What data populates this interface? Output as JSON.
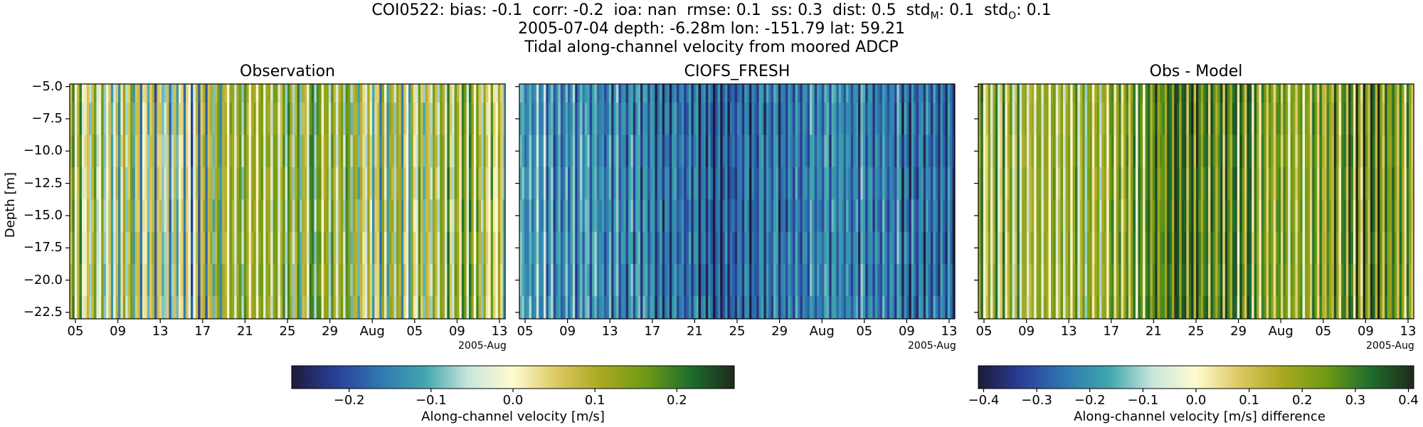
{
  "header": {
    "stats_line": "COI0522: bias: -0.1  corr: -0.2  ioa: nan  rmse: 0.1  ss: 0.3  dist: 0.5  std",
    "stats_sub_m": "M",
    "stats_mid": ": 0.1  std",
    "stats_sub_o": "O",
    "stats_end": ": 0.1",
    "meta_line": "2005-07-04 depth: -6.28m lon: -151.79 lat: 59.21",
    "subtitle": "Tidal along-channel velocity from moored ADCP"
  },
  "colors": {
    "colormap": [
      "#1b1b3a",
      "#2a3f9a",
      "#2f78b0",
      "#3fa6ad",
      "#c9e6dc",
      "#fffbd0",
      "#dcc860",
      "#a8a820",
      "#6e9a14",
      "#1e6e2e",
      "#1f2a1a"
    ]
  },
  "chart_data": [
    {
      "type": "heatmap",
      "title": "Observation",
      "ylabel": "Depth [m]",
      "xlabel": "",
      "yticks": [
        -5.0,
        -7.5,
        -10.0,
        -12.5,
        -15.0,
        -17.5,
        -20.0,
        -22.5
      ],
      "ylim": [
        -23,
        -4.8
      ],
      "xticks": [
        "05",
        "09",
        "13",
        "17",
        "21",
        "25",
        "29",
        "Aug",
        "05",
        "09",
        "13"
      ],
      "x_offset_label": "2005-Aug",
      "vrange": [
        -0.27,
        0.27
      ],
      "depth_bands": [
        -5.0,
        -7.5,
        -10.0,
        -12.5,
        -15.0,
        -17.5,
        -20.0,
        -22.5
      ],
      "time_range": [
        "2005-07-04",
        "2005-08-14"
      ],
      "trend": [
        0.05,
        0.0,
        -0.02,
        -0.05,
        0.05,
        0.1,
        0.08,
        0.06,
        0.0,
        0.05,
        0.1,
        0.05
      ],
      "amplitude": 0.12,
      "colorbar": "shared-velocity"
    },
    {
      "type": "heatmap",
      "title": "CIOFS_FRESH",
      "ylabel": "",
      "xlabel": "",
      "yticks": [
        -5.0,
        -7.5,
        -10.0,
        -12.5,
        -15.0,
        -17.5,
        -20.0,
        -22.5
      ],
      "ylim": [
        -23,
        -4.8
      ],
      "xticks": [
        "05",
        "09",
        "13",
        "17",
        "21",
        "25",
        "29",
        "Aug",
        "05",
        "09",
        "13"
      ],
      "x_offset_label": "2005-Aug",
      "vrange": [
        -0.27,
        0.27
      ],
      "depth_bands": [
        -5.0,
        -7.5,
        -10.0,
        -12.5,
        -15.0,
        -17.5,
        -20.0,
        -22.5
      ],
      "time_range": [
        "2005-07-04",
        "2005-08-14"
      ],
      "trend": [
        -0.12,
        -0.13,
        -0.14,
        -0.15,
        -0.17,
        -0.2,
        -0.18,
        -0.16,
        -0.15,
        -0.16,
        -0.17,
        -0.18
      ],
      "amplitude": 0.06,
      "colorbar": "shared-velocity"
    },
    {
      "type": "heatmap",
      "title": "Obs - Model",
      "ylabel": "",
      "xlabel": "",
      "yticks": [
        -5.0,
        -7.5,
        -10.0,
        -12.5,
        -15.0,
        -17.5,
        -20.0,
        -22.5
      ],
      "ylim": [
        -23,
        -4.8
      ],
      "xticks": [
        "05",
        "09",
        "13",
        "17",
        "21",
        "25",
        "29",
        "Aug",
        "05",
        "09",
        "13"
      ],
      "x_offset_label": "2005-Aug",
      "vrange": [
        -0.41,
        0.41
      ],
      "depth_bands": [
        -5.0,
        -7.5,
        -10.0,
        -12.5,
        -15.0,
        -17.5,
        -20.0,
        -22.5
      ],
      "time_range": [
        "2005-07-04",
        "2005-08-14"
      ],
      "trend": [
        0.15,
        0.12,
        0.1,
        0.12,
        0.2,
        0.3,
        0.25,
        0.2,
        0.15,
        0.2,
        0.28,
        0.22
      ],
      "amplitude": 0.15,
      "colorbar": "difference"
    }
  ],
  "colorbars": {
    "velocity": {
      "label": "Along-channel velocity [m/s]",
      "ticks": [
        "−0.2",
        "−0.1",
        "0.0",
        "0.1",
        "0.2"
      ],
      "tick_values": [
        -0.2,
        -0.1,
        0.0,
        0.1,
        0.2
      ],
      "vrange": [
        -0.27,
        0.27
      ]
    },
    "difference": {
      "label": "Along-channel velocity [m/s] difference",
      "ticks": [
        "−0.4",
        "−0.3",
        "−0.2",
        "−0.1",
        "0.0",
        "0.1",
        "0.2",
        "0.3",
        "0.4"
      ],
      "tick_values": [
        -0.4,
        -0.3,
        -0.2,
        -0.1,
        0.0,
        0.1,
        0.2,
        0.3,
        0.4
      ],
      "vrange": [
        -0.41,
        0.41
      ]
    }
  }
}
